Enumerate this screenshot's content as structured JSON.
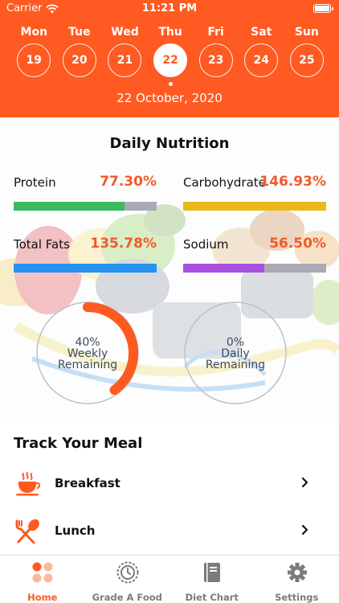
{
  "status_bar": {
    "carrier": "Carrier",
    "time": "11:21 PM"
  },
  "week": {
    "days": [
      {
        "name": "Mon",
        "date": "19",
        "selected": false
      },
      {
        "name": "Tue",
        "date": "20",
        "selected": false
      },
      {
        "name": "Wed",
        "date": "21",
        "selected": false
      },
      {
        "name": "Thu",
        "date": "22",
        "selected": true
      },
      {
        "name": "Fri",
        "date": "23",
        "selected": false
      },
      {
        "name": "Sat",
        "date": "24",
        "selected": false
      },
      {
        "name": "Sun",
        "date": "25",
        "selected": false
      }
    ],
    "selected_date_label": "22 October, 2020"
  },
  "nutrition": {
    "title": "Daily Nutrition",
    "items": [
      {
        "name": "Protein",
        "percent": "77.30%",
        "fill_fraction": 0.773,
        "color": "#3dba5f"
      },
      {
        "name": "Carbohydrate",
        "percent": "146.93%",
        "fill_fraction": 1.0,
        "color": "#e9b91a"
      },
      {
        "name": "Total Fats",
        "percent": "135.78%",
        "fill_fraction": 1.0,
        "color": "#2593ef"
      },
      {
        "name": "Sodium",
        "percent": "56.50%",
        "fill_fraction": 0.565,
        "color": "#a84fe0"
      }
    ],
    "accent_color": "#f15a28"
  },
  "progress": {
    "weekly": {
      "percent": "40%",
      "label_line1": "Weekly",
      "label_line2": "Remaining",
      "fraction": 0.4
    },
    "daily": {
      "percent": "0%",
      "label_line1": "Daily",
      "label_line2": "Remaining",
      "fraction": 0.0
    }
  },
  "meals": {
    "title": "Track Your Meal",
    "items": [
      {
        "label": "Breakfast",
        "icon": "coffee-cup-icon"
      },
      {
        "label": "Lunch",
        "icon": "spoon-fork-icon"
      }
    ]
  },
  "tabs": [
    {
      "label": "Home",
      "icon": "home-dots-icon",
      "active": true
    },
    {
      "label": "Grade A Food",
      "icon": "clock-badge-icon",
      "active": false
    },
    {
      "label": "Diet Chart",
      "icon": "book-icon",
      "active": false
    },
    {
      "label": "Settings",
      "icon": "gear-icon",
      "active": false
    }
  ],
  "colors": {
    "brand": "#fe5a21",
    "track": "#a9aab3",
    "ring": "#bfc1c6"
  }
}
